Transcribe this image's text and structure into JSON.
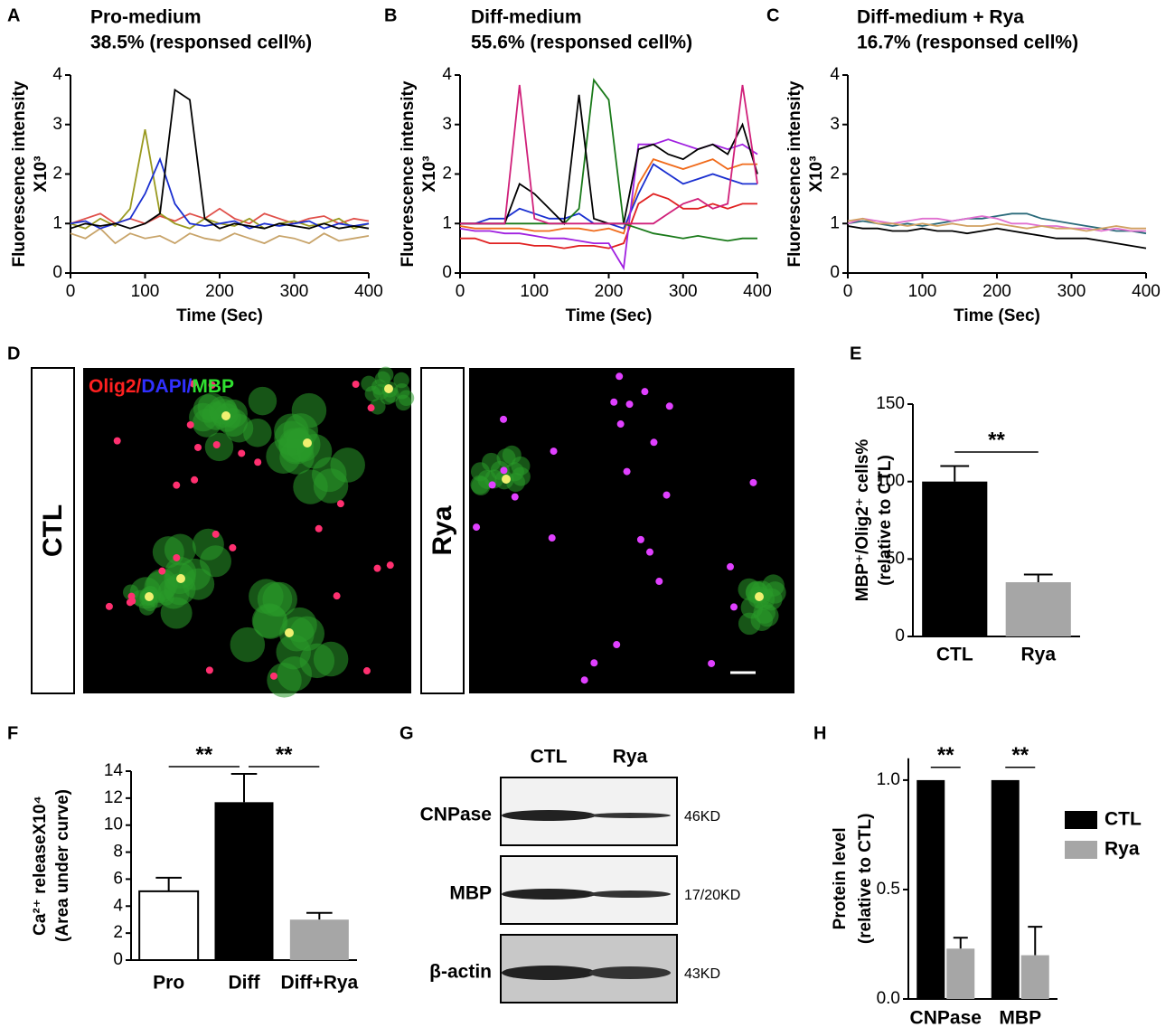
{
  "chart_data": [
    {
      "type": "line",
      "panel": "A",
      "title": "Pro-medium",
      "subtitle": "38.5% (responsed cell%)",
      "ylabel": "Fluorescence intensity",
      "ylabel2": "X10³",
      "xlabel": "Time (Sec)",
      "xlim": [
        0,
        400
      ],
      "xticks": [
        0,
        100,
        200,
        300,
        400
      ],
      "ylim": [
        0,
        4
      ],
      "yticks": [
        0,
        1,
        2,
        3,
        4
      ],
      "x": [
        0,
        20,
        40,
        60,
        80,
        100,
        120,
        140,
        160,
        180,
        200,
        220,
        240,
        260,
        280,
        300,
        320,
        340,
        360,
        380,
        400
      ],
      "series": [
        {
          "color": "#c8a46a",
          "values": [
            0.8,
            0.7,
            0.9,
            0.6,
            0.8,
            0.7,
            0.75,
            0.6,
            0.8,
            0.7,
            0.65,
            0.8,
            0.7,
            0.6,
            0.75,
            0.7,
            0.6,
            0.8,
            0.65,
            0.7,
            0.75
          ]
        },
        {
          "color": "#e0504a",
          "values": [
            1.0,
            1.1,
            1.2,
            1.0,
            1.1,
            1.0,
            1.15,
            1.05,
            1.2,
            1.1,
            1.3,
            1.1,
            1.0,
            1.2,
            1.1,
            1.0,
            1.1,
            1.15,
            1.0,
            1.1,
            1.05
          ]
        },
        {
          "color": "#9a9a20",
          "values": [
            1.0,
            0.9,
            1.1,
            0.95,
            1.3,
            2.9,
            1.2,
            1.0,
            0.9,
            1.1,
            1.0,
            0.95,
            1.1,
            0.9,
            1.0,
            1.05,
            0.95,
            1.0,
            1.1,
            0.9,
            1.0
          ]
        },
        {
          "color": "#1a2fd0",
          "values": [
            1.0,
            1.05,
            0.9,
            1.0,
            1.1,
            1.6,
            2.3,
            1.4,
            1.0,
            0.95,
            1.0,
            1.05,
            0.9,
            1.0,
            0.95,
            1.0,
            1.05,
            0.9,
            1.0,
            0.95,
            1.0
          ]
        },
        {
          "color": "#000000",
          "values": [
            0.9,
            1.0,
            0.95,
            1.0,
            0.9,
            1.0,
            1.2,
            3.7,
            3.5,
            1.1,
            0.9,
            1.0,
            0.95,
            0.9,
            1.0,
            0.95,
            0.9,
            1.0,
            0.9,
            0.95,
            0.9
          ]
        }
      ]
    },
    {
      "type": "line",
      "panel": "B",
      "title": "Diff-medium",
      "subtitle": "55.6% (responsed cell%)",
      "ylabel": "Fluorescence intensity",
      "ylabel2": "X10³",
      "xlabel": "Time (Sec)",
      "xlim": [
        0,
        400
      ],
      "xticks": [
        0,
        100,
        200,
        300,
        400
      ],
      "ylim": [
        0,
        4
      ],
      "yticks": [
        0,
        1,
        2,
        3,
        4
      ],
      "x": [
        0,
        20,
        40,
        60,
        80,
        100,
        120,
        140,
        160,
        180,
        200,
        220,
        240,
        260,
        280,
        300,
        320,
        340,
        360,
        380,
        400
      ],
      "series": [
        {
          "color": "#e02020",
          "values": [
            0.7,
            0.7,
            0.6,
            0.6,
            0.6,
            0.55,
            0.55,
            0.5,
            0.55,
            0.55,
            0.5,
            0.6,
            1.4,
            1.6,
            1.5,
            1.3,
            1.3,
            1.4,
            1.3,
            1.4,
            1.4
          ]
        },
        {
          "color": "#f06a1a",
          "values": [
            0.95,
            0.9,
            0.9,
            0.9,
            0.9,
            0.85,
            0.85,
            0.9,
            0.9,
            0.85,
            0.9,
            0.8,
            1.8,
            2.3,
            2.2,
            2.1,
            2.2,
            2.3,
            2.1,
            2.2,
            2.2
          ]
        },
        {
          "color": "#1a2fd0",
          "values": [
            1.0,
            1.0,
            1.1,
            1.1,
            1.3,
            1.2,
            1.1,
            1.1,
            1.2,
            1.0,
            1.0,
            0.9,
            1.6,
            2.2,
            2.0,
            1.8,
            1.9,
            2.0,
            1.9,
            1.8,
            1.8
          ]
        },
        {
          "color": "#a020e0",
          "values": [
            0.9,
            0.85,
            0.85,
            0.8,
            0.8,
            0.75,
            0.7,
            0.7,
            0.65,
            0.6,
            0.6,
            0.1,
            2.6,
            2.6,
            2.7,
            2.6,
            2.5,
            2.6,
            2.5,
            2.6,
            2.4
          ]
        },
        {
          "color": "#1a7a1a",
          "values": [
            1.0,
            1.0,
            1.0,
            1.0,
            1.0,
            1.0,
            1.0,
            1.0,
            1.3,
            3.9,
            3.5,
            1.0,
            0.9,
            0.8,
            0.75,
            0.7,
            0.75,
            0.7,
            0.65,
            0.7,
            0.7
          ]
        },
        {
          "color": "#000000",
          "values": [
            1.0,
            1.0,
            1.0,
            1.0,
            1.8,
            1.6,
            1.3,
            1.0,
            3.6,
            1.1,
            1.0,
            1.0,
            2.5,
            2.6,
            2.4,
            2.3,
            2.5,
            2.6,
            2.4,
            3.0,
            2.0
          ]
        },
        {
          "color": "#d0207a",
          "values": [
            1.0,
            1.0,
            1.0,
            1.0,
            3.8,
            1.1,
            1.0,
            1.0,
            1.0,
            1.0,
            1.0,
            1.0,
            1.0,
            1.0,
            1.2,
            1.4,
            1.5,
            1.3,
            1.4,
            3.8,
            1.8
          ]
        }
      ]
    },
    {
      "type": "line",
      "panel": "C",
      "title": "Diff-medium + Rya",
      "subtitle": "16.7% (responsed cell%)",
      "ylabel": "Fluorescence intensity",
      "ylabel2": "X10³",
      "xlabel": "Time (Sec)",
      "xlim": [
        0,
        400
      ],
      "xticks": [
        0,
        100,
        200,
        300,
        400
      ],
      "ylim": [
        0,
        4
      ],
      "yticks": [
        0,
        1,
        2,
        3,
        4
      ],
      "x": [
        0,
        20,
        40,
        60,
        80,
        100,
        120,
        140,
        160,
        180,
        200,
        220,
        240,
        260,
        280,
        300,
        320,
        340,
        360,
        380,
        400
      ],
      "series": [
        {
          "color": "#2a6a7a",
          "values": [
            1.0,
            1.05,
            1.0,
            0.95,
            1.0,
            0.95,
            1.0,
            1.05,
            1.1,
            1.1,
            1.15,
            1.2,
            1.2,
            1.1,
            1.05,
            1.0,
            0.95,
            0.9,
            0.85,
            0.85,
            0.8
          ]
        },
        {
          "color": "#e070d0",
          "values": [
            1.0,
            1.1,
            1.05,
            1.0,
            1.05,
            1.1,
            1.1,
            1.05,
            1.1,
            1.15,
            1.1,
            1.0,
            1.0,
            0.95,
            0.95,
            0.9,
            0.9,
            0.85,
            0.9,
            0.85,
            0.85
          ]
        },
        {
          "color": "#d0a060",
          "values": [
            1.05,
            1.1,
            1.0,
            1.0,
            0.95,
            1.0,
            0.95,
            1.0,
            0.95,
            0.95,
            1.0,
            0.95,
            0.9,
            0.95,
            0.9,
            0.9,
            0.85,
            0.9,
            0.95,
            0.9,
            0.9
          ]
        },
        {
          "color": "#000000",
          "values": [
            0.95,
            0.9,
            0.9,
            0.85,
            0.85,
            0.9,
            0.85,
            0.85,
            0.8,
            0.85,
            0.9,
            0.85,
            0.8,
            0.75,
            0.7,
            0.7,
            0.7,
            0.65,
            0.6,
            0.55,
            0.5
          ]
        }
      ]
    },
    {
      "type": "bar",
      "panel": "E",
      "ylabel": "MBP⁺/Olig2⁺ cells%",
      "ylabel2": "(relative to CTL)",
      "categories": [
        "CTL",
        "Rya"
      ],
      "values": [
        100,
        35
      ],
      "errors": [
        10,
        5
      ],
      "colors": [
        "#000000",
        "#a6a6a6"
      ],
      "ylim": [
        0,
        150
      ],
      "yticks": [
        0,
        50,
        100,
        150
      ],
      "annotations": [
        "**"
      ]
    },
    {
      "type": "bar",
      "panel": "F",
      "ylabel": "Ca²⁺ releaseX10⁴",
      "ylabel2": "(Area under curve)",
      "categories": [
        "Pro",
        "Diff",
        "Diff+Rya"
      ],
      "values": [
        5.1,
        11.7,
        3.0
      ],
      "errors": [
        1.0,
        2.1,
        0.5
      ],
      "colors": [
        "#ffffff",
        "#000000",
        "#a6a6a6"
      ],
      "ylim": [
        0,
        14
      ],
      "yticks": [
        0,
        2,
        4,
        6,
        8,
        10,
        12,
        14
      ],
      "annotations": [
        "**",
        "**"
      ]
    },
    {
      "type": "grouped_bar",
      "panel": "H",
      "ylabel": "Protein level",
      "ylabel2": "(relative to CTL)",
      "categories": [
        "CNPase",
        "MBP"
      ],
      "series": [
        {
          "name": "CTL",
          "color": "#000000",
          "values": [
            1.0,
            1.0
          ]
        },
        {
          "name": "Rya",
          "color": "#a6a6a6",
          "values": [
            0.23,
            0.2
          ],
          "errors": [
            0.05,
            0.13
          ]
        }
      ],
      "ylim": [
        0,
        1.1
      ],
      "yticks": [
        {
          "value": 0,
          "label": "0.0"
        },
        {
          "value": 0.5,
          "label": "0.5"
        },
        {
          "value": 1,
          "label": "1.0"
        }
      ],
      "legend": "right",
      "annotations": [
        "**",
        "**"
      ]
    }
  ],
  "micrograph": {
    "panel": "D",
    "stain": [
      "Olig2/",
      "DAPI/",
      "MBP"
    ],
    "conditions": [
      "CTL",
      "Rya"
    ]
  },
  "western_blot": {
    "panel": "G",
    "lanes": [
      "CTL",
      "Rya"
    ],
    "rows": [
      {
        "protein": "CNPase",
        "size": "46KD"
      },
      {
        "protein": "MBP",
        "size": "17/20KD"
      },
      {
        "protein": "β-actin",
        "size": "43KD"
      }
    ]
  }
}
